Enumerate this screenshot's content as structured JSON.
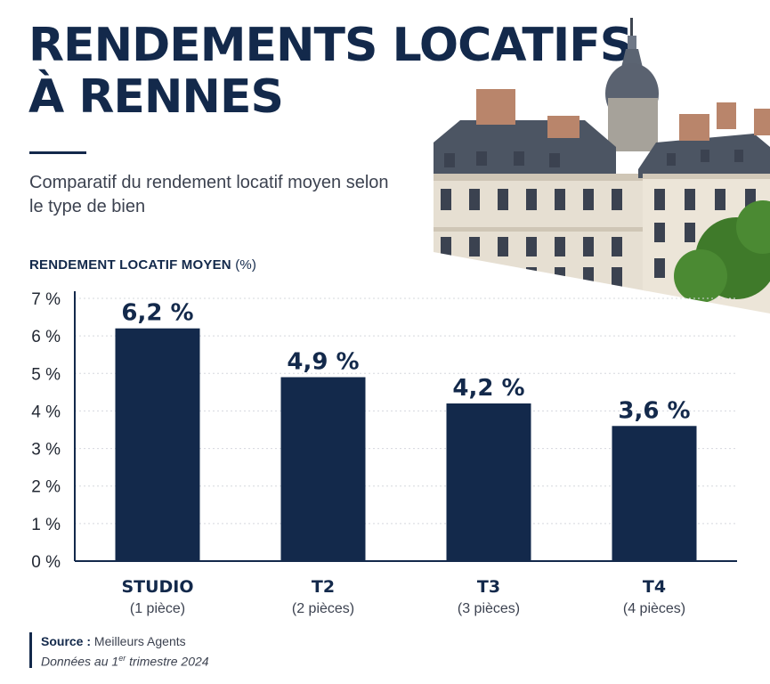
{
  "header": {
    "title": "RENDEMENTS LOCATIFS\nÀ RENNES",
    "subtitle": "Comparatif du rendement locatif moyen selon le type de bien"
  },
  "chart_data": {
    "type": "bar",
    "ylabel": "RENDEMENT LOCATIF MOYEN",
    "ylabel_unit": "(%)",
    "ylim": [
      0,
      7
    ],
    "yticks": [
      0,
      1,
      2,
      3,
      4,
      5,
      6,
      7
    ],
    "ytick_labels": [
      "0 %",
      "1 %",
      "2 %",
      "3 %",
      "4 %",
      "5 %",
      "6 %",
      "7 %"
    ],
    "grid": true,
    "categories": [
      "STUDIO",
      "T2",
      "T3",
      "T4"
    ],
    "category_sublabels": [
      "(1 pièce)",
      "(2 pièces)",
      "(3 pièces)",
      "(4 pièces)"
    ],
    "values": [
      6.2,
      4.9,
      4.2,
      3.6
    ],
    "value_labels": [
      "6,2 %",
      "4,9 %",
      "4,2 %",
      "3,6 %"
    ],
    "bar_color": "#13294b"
  },
  "footer": {
    "source_label": "Source :",
    "source_value": "Meilleurs Agents",
    "date_prefix": "Données au 1",
    "date_sup": "er",
    "date_suffix": " trimestre 2024"
  },
  "image": {
    "icon": "rennes-building-illustration"
  }
}
